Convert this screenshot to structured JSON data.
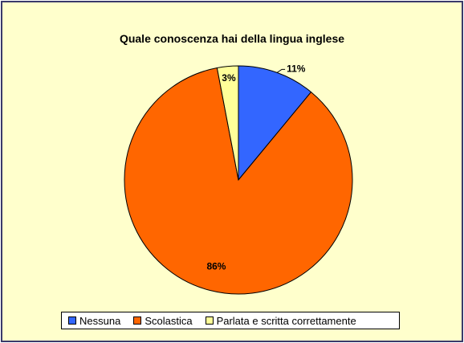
{
  "chart_data": {
    "type": "pie",
    "title": "Quale conoscenza hai della lingua inglese",
    "categories": [
      "Nessuna",
      "Scolastica",
      "Parlata e scritta correttamente"
    ],
    "values": [
      11,
      86,
      3
    ],
    "labels": [
      "11%",
      "86%",
      "3%"
    ],
    "colors": [
      "#3366ff",
      "#ff6600",
      "#ffff99"
    ],
    "legend_position": "bottom",
    "legend": {
      "items": [
        {
          "label": "Nessuna",
          "color": "#3366ff"
        },
        {
          "label": "Scolastica",
          "color": "#ff6600"
        },
        {
          "label": "Parlata e scritta correttamente",
          "color": "#ffff99"
        }
      ]
    }
  },
  "background_color": "#ffffcc"
}
